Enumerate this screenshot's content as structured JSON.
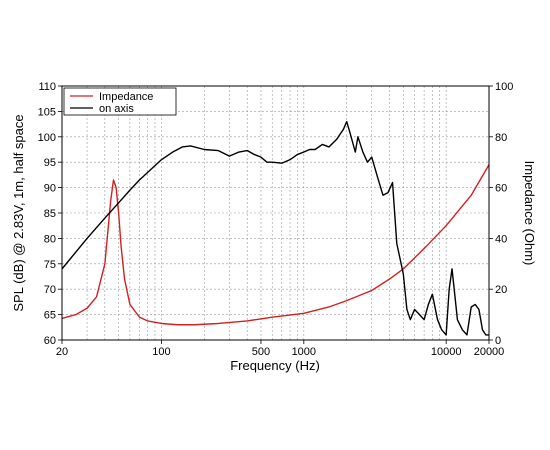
{
  "chart_data": {
    "type": "line",
    "xlabel": "Frequency (Hz)",
    "ylabel_left": "SPL (dB) @ 2.83V, 1m, half space",
    "ylabel_right": "Impedance (Ohm)",
    "x_scale": "log",
    "xlim": [
      20,
      20000
    ],
    "ylim_left": [
      60,
      110
    ],
    "ylim_right": [
      0,
      100
    ],
    "x_ticks": [
      {
        "value": 20,
        "label": "20"
      },
      {
        "value": 100,
        "label": "100"
      },
      {
        "value": 500,
        "label": "500"
      },
      {
        "value": 1000,
        "label": "1000"
      },
      {
        "value": 10000,
        "label": "10000"
      },
      {
        "value": 20000,
        "label": "20000"
      }
    ],
    "y_ticks_left": [
      "60",
      "65",
      "70",
      "75",
      "80",
      "85",
      "90",
      "95",
      "100",
      "105",
      "110"
    ],
    "y_ticks_right": [
      "0",
      "20",
      "40",
      "60",
      "80",
      "100"
    ],
    "grid": true,
    "legend_position": "top-left",
    "series": [
      {
        "name": "Impedance",
        "axis": "right",
        "color": "#d42020",
        "x": [
          20,
          25,
          30,
          35,
          40,
          44,
          46,
          48,
          50,
          52,
          55,
          60,
          70,
          80,
          100,
          130,
          170,
          250,
          400,
          600,
          1000,
          1500,
          2000,
          3000,
          4000,
          5000,
          7000,
          10000,
          15000,
          20000
        ],
        "y": [
          8.5,
          10,
          12.5,
          17,
          30,
          55,
          63,
          60,
          50,
          37,
          24,
          14,
          9,
          7.5,
          6.5,
          6,
          6,
          6.5,
          7.5,
          9,
          10.5,
          13,
          15.5,
          19.5,
          24,
          28,
          36,
          45,
          57,
          69
        ]
      },
      {
        "name": "on axis",
        "axis": "left",
        "color": "#000000",
        "x": [
          20,
          30,
          40,
          50,
          60,
          70,
          80,
          100,
          120,
          140,
          160,
          200,
          250,
          300,
          350,
          400,
          450,
          500,
          550,
          600,
          700,
          800,
          900,
          1000,
          1100,
          1200,
          1350,
          1500,
          1700,
          1900,
          2000,
          2100,
          2300,
          2400,
          2600,
          2800,
          3000,
          3300,
          3600,
          3900,
          4200,
          4500,
          5000,
          5300,
          5600,
          6000,
          6500,
          7000,
          7500,
          8000,
          8700,
          9300,
          10000,
          10500,
          11000,
          12000,
          13000,
          14000,
          15000,
          16000,
          17000,
          18000,
          19000,
          20000
        ],
        "y": [
          74,
          80,
          84,
          87,
          89.5,
          91.5,
          93,
          95.5,
          97,
          98,
          98.2,
          97.5,
          97.3,
          96.2,
          97,
          97.3,
          96.5,
          96,
          95,
          95,
          94.8,
          95.5,
          96.5,
          97,
          97.5,
          97.5,
          98.5,
          98,
          99.5,
          101.5,
          103,
          101,
          97,
          100,
          97,
          95,
          96,
          92,
          88.5,
          89,
          91,
          79,
          73,
          66,
          64,
          66,
          65,
          64,
          67,
          69,
          64,
          62,
          61,
          70,
          74,
          64,
          62,
          61,
          66.5,
          67,
          66,
          62,
          61,
          61
        ]
      }
    ]
  }
}
